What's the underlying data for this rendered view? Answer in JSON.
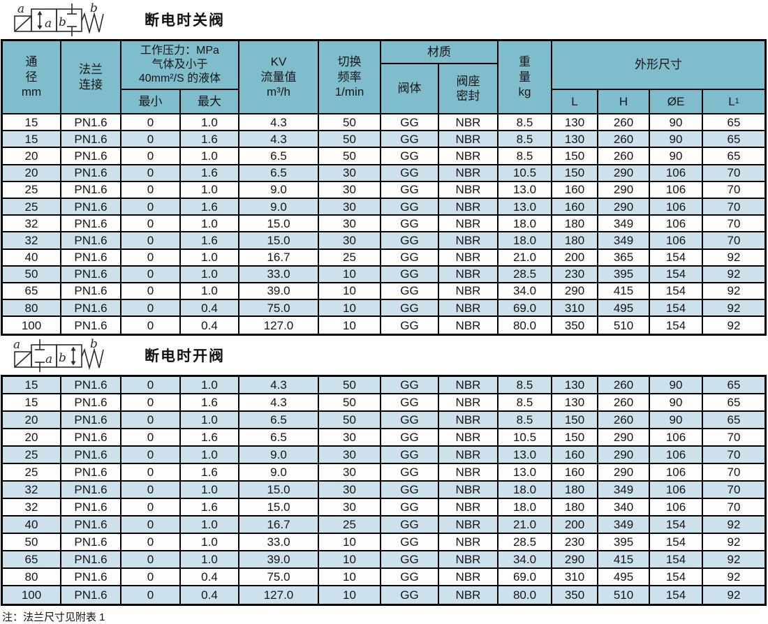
{
  "colors": {
    "header_bg": "#7fbdcc",
    "row_stripe": "#cde1ed",
    "row_plain": "#fdfdfc",
    "border": "#000000"
  },
  "sections": [
    {
      "title": "断电时关阀"
    },
    {
      "title": "断电时开阀"
    }
  ],
  "table_header": {
    "diameter": "通\n径\nmm",
    "flange": "法兰\n连接",
    "pressure": "工作压力：MPa\n气体及小于\n40mm²/S 的液体",
    "min": "最小",
    "max": "最大",
    "kv": "KV\n流量值\nm³/h",
    "frequency": "切换\n频率\n1/min",
    "material": "材质",
    "valve_body": "阀体",
    "seat_seal": "阀座\n密封",
    "weight": "重\n量\nkg",
    "dimensions": "外形尺寸",
    "l": "L",
    "h": "H",
    "oe": "ØE",
    "l1_base": "L",
    "l1_sub": "1"
  },
  "tables": {
    "closed_valve": {
      "rows": [
        [
          "15",
          "PN1.6",
          "0",
          "1.0",
          "4.3",
          "50",
          "GG",
          "NBR",
          "8.5",
          "130",
          "260",
          "90",
          "65"
        ],
        [
          "15",
          "PN1.6",
          "0",
          "1.6",
          "4.3",
          "50",
          "GG",
          "NBR",
          "8.5",
          "130",
          "260",
          "90",
          "65"
        ],
        [
          "20",
          "PN1.6",
          "0",
          "1.0",
          "6.5",
          "50",
          "GG",
          "NBR",
          "8.5",
          "150",
          "260",
          "90",
          "65"
        ],
        [
          "20",
          "PN1.6",
          "0",
          "1.6",
          "6.5",
          "30",
          "GG",
          "NBR",
          "10.5",
          "150",
          "290",
          "106",
          "70"
        ],
        [
          "25",
          "PN1.6",
          "0",
          "1.0",
          "9.0",
          "30",
          "GG",
          "NBR",
          "13.0",
          "160",
          "290",
          "106",
          "70"
        ],
        [
          "25",
          "PN1.6",
          "0",
          "1.6",
          "9.0",
          "30",
          "GG",
          "NBR",
          "13.0",
          "160",
          "290",
          "106",
          "70"
        ],
        [
          "32",
          "PN1.6",
          "0",
          "1.0",
          "15.0",
          "30",
          "GG",
          "NBR",
          "18.0",
          "180",
          "349",
          "106",
          "70"
        ],
        [
          "32",
          "PN1.6",
          "0",
          "1.6",
          "15.0",
          "30",
          "GG",
          "NBR",
          "18.0",
          "180",
          "349",
          "106",
          "70"
        ],
        [
          "40",
          "PN1.6",
          "0",
          "1.0",
          "16.7",
          "25",
          "GG",
          "NBR",
          "21.0",
          "200",
          "365",
          "154",
          "92"
        ],
        [
          "50",
          "PN1.6",
          "0",
          "1.0",
          "33.0",
          "10",
          "GG",
          "NBR",
          "28.5",
          "230",
          "395",
          "154",
          "92"
        ],
        [
          "65",
          "PN1.6",
          "0",
          "1.0",
          "39.0",
          "10",
          "GG",
          "NBR",
          "34.0",
          "290",
          "415",
          "154",
          "92"
        ],
        [
          "80",
          "PN1.6",
          "0",
          "0.4",
          "75.0",
          "10",
          "GG",
          "NBR",
          "69.0",
          "310",
          "495",
          "154",
          "92"
        ],
        [
          "100",
          "PN1.6",
          "0",
          "0.4",
          "127.0",
          "10",
          "GG",
          "NBR",
          "80.0",
          "350",
          "510",
          "154",
          "92"
        ]
      ]
    },
    "open_valve": {
      "rows": [
        [
          "15",
          "PN1.6",
          "0",
          "1.0",
          "4.3",
          "50",
          "GG",
          "NBR",
          "8.5",
          "130",
          "260",
          "90",
          "65"
        ],
        [
          "15",
          "PN1.6",
          "0",
          "1.6",
          "4.3",
          "50",
          "GG",
          "NBR",
          "8.5",
          "130",
          "260",
          "90",
          "65"
        ],
        [
          "20",
          "PN1.6",
          "0",
          "1.0",
          "6.5",
          "50",
          "GG",
          "NBR",
          "8.5",
          "150",
          "260",
          "90",
          "65"
        ],
        [
          "20",
          "PN1.6",
          "0",
          "1.6",
          "6.5",
          "30",
          "GG",
          "NBR",
          "10.5",
          "150",
          "290",
          "106",
          "70"
        ],
        [
          "25",
          "PN1.6",
          "0",
          "1.0",
          "9.0",
          "30",
          "GG",
          "NBR",
          "13.0",
          "160",
          "290",
          "106",
          "70"
        ],
        [
          "25",
          "PN1.6",
          "0",
          "1.6",
          "9.0",
          "30",
          "GG",
          "NBR",
          "13.0",
          "160",
          "290",
          "106",
          "70"
        ],
        [
          "32",
          "PN1.6",
          "0",
          "1.0",
          "15.0",
          "30",
          "GG",
          "NBR",
          "18.0",
          "180",
          "349",
          "106",
          "70"
        ],
        [
          "32",
          "PN1.6",
          "0",
          "1.6",
          "15.0",
          "30",
          "GG",
          "NBR",
          "18.0",
          "180",
          "340",
          "106",
          "70"
        ],
        [
          "40",
          "PN1.6",
          "0",
          "1.0",
          "16.7",
          "25",
          "GG",
          "NBR",
          "21.0",
          "200",
          "349",
          "154",
          "92"
        ],
        [
          "50",
          "PN1.6",
          "0",
          "1.0",
          "33.0",
          "10",
          "GG",
          "NBR",
          "28.5",
          "230",
          "395",
          "154",
          "92"
        ],
        [
          "65",
          "PN1.6",
          "0",
          "1.0",
          "39.0",
          "10",
          "GG",
          "NBR",
          "34.0",
          "290",
          "415",
          "154",
          "92"
        ],
        [
          "80",
          "PN1.6",
          "0",
          "0.4",
          "75.0",
          "10",
          "GG",
          "NBR",
          "69.0",
          "310",
          "495",
          "154",
          "92"
        ],
        [
          "100",
          "PN1.6",
          "0",
          "0.4",
          "127.0",
          "10",
          "GG",
          "NBR",
          "80.0",
          "350",
          "510",
          "154",
          "92"
        ]
      ]
    }
  },
  "note": "注：法兰尺寸见附表 1",
  "symbol_labels": {
    "a": "a",
    "b": "b"
  }
}
